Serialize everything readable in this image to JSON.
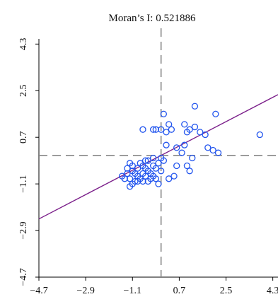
{
  "chart_data": {
    "type": "scatter",
    "title": "Moran’s I: 0.521886",
    "xlabel": "",
    "ylabel": "",
    "xlim": [
      -4.7,
      4.5
    ],
    "ylim": [
      -4.7,
      4.5
    ],
    "x_ticks": [
      -4.7,
      -2.9,
      -1.1,
      0.7,
      2.5,
      4.3
    ],
    "y_ticks": [
      -4.7,
      -2.9,
      -1.1,
      0.7,
      2.5,
      4.3
    ],
    "x_tick_labels": [
      "−4.7",
      "−2.9",
      "−1.1",
      "0.7",
      "2.5",
      "4.3"
    ],
    "y_tick_labels": [
      "−4.7",
      "−2.9",
      "−1.1",
      "0.7",
      "2.5",
      "4.3"
    ],
    "grid": false,
    "reference_lines": {
      "x": 0.0,
      "y": 0.0,
      "style": "dashed",
      "color": "#888888"
    },
    "regression_line": {
      "slope": 0.521886,
      "intercept": 0.0,
      "color": "#7b1f8a"
    },
    "marker_color": "#2255ee",
    "points": [
      {
        "x": 0.1,
        "y": 1.6
      },
      {
        "x": 1.3,
        "y": 1.9
      },
      {
        "x": 2.1,
        "y": 1.6
      },
      {
        "x": 0.3,
        "y": 1.2
      },
      {
        "x": 0.2,
        "y": 0.9
      },
      {
        "x": 0.0,
        "y": 1.0
      },
      {
        "x": -0.2,
        "y": 1.0
      },
      {
        "x": 0.4,
        "y": 1.0
      },
      {
        "x": -0.7,
        "y": 1.0
      },
      {
        "x": -0.3,
        "y": 1.0
      },
      {
        "x": 0.9,
        "y": 1.2
      },
      {
        "x": 1.0,
        "y": 0.9
      },
      {
        "x": 1.1,
        "y": 1.0
      },
      {
        "x": 1.3,
        "y": 1.1
      },
      {
        "x": 1.5,
        "y": 0.9
      },
      {
        "x": 1.7,
        "y": 0.8
      },
      {
        "x": 1.8,
        "y": 0.3
      },
      {
        "x": 2.0,
        "y": 0.2
      },
      {
        "x": 2.2,
        "y": 0.1
      },
      {
        "x": 3.8,
        "y": 0.8
      },
      {
        "x": 0.2,
        "y": 0.4
      },
      {
        "x": 0.6,
        "y": 0.3
      },
      {
        "x": 0.9,
        "y": 0.4
      },
      {
        "x": 0.8,
        "y": 0.1
      },
      {
        "x": 1.0,
        "y": -0.4
      },
      {
        "x": 1.2,
        "y": -0.1
      },
      {
        "x": 1.1,
        "y": -0.6
      },
      {
        "x": 0.6,
        "y": -0.4
      },
      {
        "x": 0.5,
        "y": -0.8
      },
      {
        "x": 0.3,
        "y": -0.9
      },
      {
        "x": -0.3,
        "y": -0.1
      },
      {
        "x": -0.5,
        "y": -0.2
      },
      {
        "x": -0.7,
        "y": -0.4
      },
      {
        "x": -0.9,
        "y": -0.5
      },
      {
        "x": -1.1,
        "y": -0.6
      },
      {
        "x": -1.3,
        "y": -0.7
      },
      {
        "x": -1.5,
        "y": -0.8
      },
      {
        "x": -1.2,
        "y": -0.9
      },
      {
        "x": -1.0,
        "y": -1.0
      },
      {
        "x": -1.2,
        "y": -1.2
      },
      {
        "x": -0.8,
        "y": -0.9
      },
      {
        "x": -0.6,
        "y": -0.8
      },
      {
        "x": -0.4,
        "y": -0.7
      },
      {
        "x": -0.2,
        "y": -0.9
      },
      {
        "x": -0.1,
        "y": -1.1
      },
      {
        "x": 0.0,
        "y": -0.6
      },
      {
        "x": -0.3,
        "y": -0.4
      },
      {
        "x": -0.5,
        "y": -0.6
      },
      {
        "x": -0.7,
        "y": -0.7
      },
      {
        "x": -0.9,
        "y": -0.8
      },
      {
        "x": -1.1,
        "y": -0.4
      },
      {
        "x": -0.8,
        "y": -0.3
      },
      {
        "x": -0.6,
        "y": -0.5
      },
      {
        "x": -1.0,
        "y": -0.7
      },
      {
        "x": -1.3,
        "y": -0.5
      },
      {
        "x": -0.4,
        "y": -0.9
      },
      {
        "x": -0.2,
        "y": -0.5
      },
      {
        "x": -0.9,
        "y": -1.0
      },
      {
        "x": -1.1,
        "y": -1.1
      },
      {
        "x": -0.7,
        "y": -1.0
      },
      {
        "x": -1.4,
        "y": -0.9
      },
      {
        "x": -0.5,
        "y": -1.0
      },
      {
        "x": -1.2,
        "y": -0.3
      },
      {
        "x": -0.3,
        "y": -0.8
      },
      {
        "x": -0.6,
        "y": -0.2
      },
      {
        "x": -0.1,
        "y": -0.3
      },
      {
        "x": 0.1,
        "y": -0.2
      },
      {
        "x": 0.0,
        "y": -0.1
      }
    ]
  }
}
